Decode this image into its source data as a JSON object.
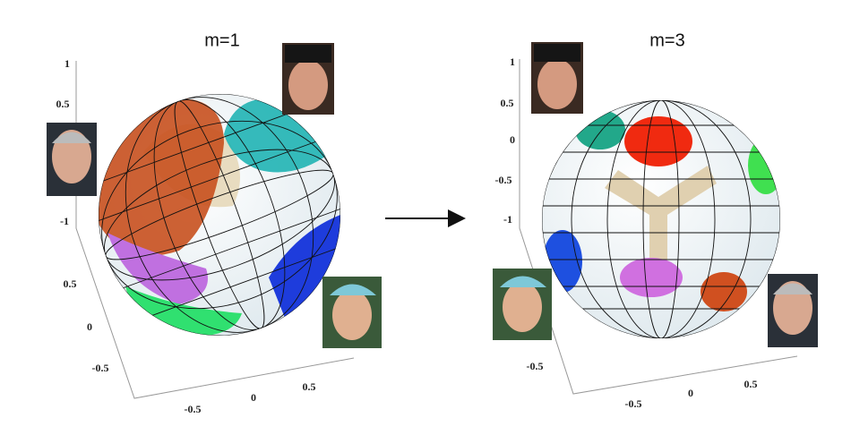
{
  "panels": [
    {
      "title": "m=1",
      "vertical_ticks": [
        "1",
        "0.5",
        "-1"
      ],
      "depth_ticks": [
        "0.5",
        "0",
        "-0.5"
      ],
      "x_ticks": [
        "-0.5",
        "0",
        "0.5"
      ]
    },
    {
      "title": "m=3",
      "vertical_ticks": [
        "1",
        "0.5",
        "0",
        "-0.5",
        "-1"
      ],
      "depth_ticks": [
        "-0.5"
      ],
      "x_ticks": [
        "-0.5",
        "0",
        "0.5"
      ]
    }
  ]
}
